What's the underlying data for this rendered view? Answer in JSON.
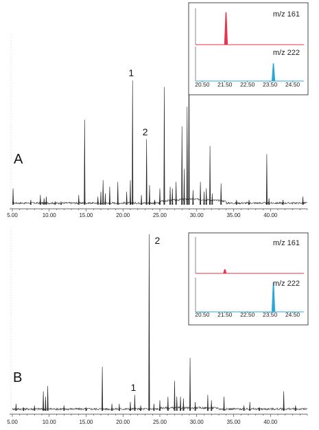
{
  "chart_data": [
    {
      "type": "line",
      "panel_label": "A",
      "xlim": [
        5.0,
        45.0
      ],
      "x_ticks": [
        "5.00",
        "10.00",
        "15.00",
        "20.00",
        "25.00",
        "30.00",
        "35.00",
        "40.00"
      ],
      "x_tick_values": [
        5,
        10,
        15,
        20,
        25,
        30,
        35,
        40
      ],
      "peaks": [
        {
          "x": 5.1,
          "h": 0.1
        },
        {
          "x": 7.5,
          "h": 0.03
        },
        {
          "x": 8.8,
          "h": 0.06
        },
        {
          "x": 9.3,
          "h": 0.04
        },
        {
          "x": 9.6,
          "h": 0.05
        },
        {
          "x": 10.8,
          "h": 0.02
        },
        {
          "x": 11.6,
          "h": 0.02
        },
        {
          "x": 14.0,
          "h": 0.06
        },
        {
          "x": 14.8,
          "h": 0.52
        },
        {
          "x": 16.6,
          "h": 0.05
        },
        {
          "x": 17.0,
          "h": 0.08
        },
        {
          "x": 17.3,
          "h": 0.15
        },
        {
          "x": 17.6,
          "h": 0.07
        },
        {
          "x": 18.2,
          "h": 0.11
        },
        {
          "x": 19.3,
          "h": 0.14
        },
        {
          "x": 20.5,
          "h": 0.08
        },
        {
          "x": 21.0,
          "h": 0.15
        },
        {
          "x": 21.3,
          "h": 0.76
        },
        {
          "x": 22.5,
          "h": 0.06
        },
        {
          "x": 23.2,
          "h": 0.4
        },
        {
          "x": 23.6,
          "h": 0.12
        },
        {
          "x": 24.3,
          "h": 0.03
        },
        {
          "x": 25.0,
          "h": 0.1
        },
        {
          "x": 25.6,
          "h": 0.72
        },
        {
          "x": 26.4,
          "h": 0.11
        },
        {
          "x": 26.7,
          "h": 0.1
        },
        {
          "x": 27.2,
          "h": 0.14
        },
        {
          "x": 28.0,
          "h": 0.48
        },
        {
          "x": 28.3,
          "h": 0.22
        },
        {
          "x": 28.7,
          "h": 0.6
        },
        {
          "x": 28.95,
          "h": 1.0
        },
        {
          "x": 29.5,
          "h": 0.09
        },
        {
          "x": 30.5,
          "h": 0.14
        },
        {
          "x": 31.0,
          "h": 0.08
        },
        {
          "x": 31.3,
          "h": 0.1
        },
        {
          "x": 31.8,
          "h": 0.36
        },
        {
          "x": 32.1,
          "h": 0.07
        },
        {
          "x": 33.3,
          "h": 0.13
        },
        {
          "x": 35.4,
          "h": 0.03
        },
        {
          "x": 37.1,
          "h": 0.03
        },
        {
          "x": 39.5,
          "h": 0.31
        },
        {
          "x": 39.8,
          "h": 0.04
        },
        {
          "x": 41.7,
          "h": 0.03
        },
        {
          "x": 44.4,
          "h": 0.05
        }
      ],
      "peak_labels": [
        {
          "text": "1",
          "x": 21.3
        },
        {
          "text": "2",
          "x": 23.2
        }
      ],
      "inset": {
        "xlim": [
          20.2,
          25.0
        ],
        "x_ticks": [
          "20.50",
          "21.50",
          "22.50",
          "23.50",
          "24.50"
        ],
        "x_tick_values": [
          20.5,
          21.5,
          22.5,
          23.5,
          24.5
        ],
        "traces": [
          {
            "ion": "m/z 161",
            "color": "#e8334a",
            "peak_x": 21.55,
            "peak_h": 0.95
          },
          {
            "ion": "m/z 222",
            "color": "#29a8d8",
            "peak_x": 23.65,
            "peak_h": 0.55
          }
        ]
      }
    },
    {
      "type": "line",
      "panel_label": "B",
      "xlim": [
        5.0,
        45.0
      ],
      "x_ticks": [
        "5.00",
        "10.00",
        "15.00",
        "20.00",
        "25.00",
        "30.00",
        "35.00",
        "40.00"
      ],
      "x_tick_values": [
        5,
        10,
        15,
        20,
        25,
        30,
        35,
        40
      ],
      "peaks": [
        {
          "x": 5.5,
          "h": 0.04
        },
        {
          "x": 6.5,
          "h": 0.02
        },
        {
          "x": 8.0,
          "h": 0.03
        },
        {
          "x": 9.2,
          "h": 0.11
        },
        {
          "x": 9.5,
          "h": 0.08
        },
        {
          "x": 9.8,
          "h": 0.14
        },
        {
          "x": 12.0,
          "h": 0.03
        },
        {
          "x": 15.0,
          "h": 0.02
        },
        {
          "x": 17.2,
          "h": 0.25
        },
        {
          "x": 18.5,
          "h": 0.04
        },
        {
          "x": 19.5,
          "h": 0.04
        },
        {
          "x": 21.0,
          "h": 0.05
        },
        {
          "x": 21.6,
          "h": 0.09
        },
        {
          "x": 22.4,
          "h": 0.03
        },
        {
          "x": 23.55,
          "h": 1.0
        },
        {
          "x": 24.2,
          "h": 0.04
        },
        {
          "x": 25.0,
          "h": 0.06
        },
        {
          "x": 26.1,
          "h": 0.08
        },
        {
          "x": 27.0,
          "h": 0.17
        },
        {
          "x": 27.3,
          "h": 0.08
        },
        {
          "x": 27.8,
          "h": 0.08
        },
        {
          "x": 28.2,
          "h": 0.07
        },
        {
          "x": 29.1,
          "h": 0.3
        },
        {
          "x": 29.8,
          "h": 0.05
        },
        {
          "x": 31.5,
          "h": 0.09
        },
        {
          "x": 32.0,
          "h": 0.06
        },
        {
          "x": 33.7,
          "h": 0.08
        },
        {
          "x": 36.4,
          "h": 0.03
        },
        {
          "x": 37.2,
          "h": 0.05
        },
        {
          "x": 38.5,
          "h": 0.02
        },
        {
          "x": 41.8,
          "h": 0.11
        },
        {
          "x": 43.4,
          "h": 0.03
        }
      ],
      "peak_labels": [
        {
          "text": "1",
          "x": 21.6
        },
        {
          "text": "2",
          "x": 23.55
        }
      ],
      "inset": {
        "xlim": [
          20.2,
          25.0
        ],
        "x_ticks": [
          "20.50",
          "21.50",
          "22.50",
          "23.50",
          "24.50"
        ],
        "x_tick_values": [
          20.5,
          21.5,
          22.5,
          23.5,
          24.5
        ],
        "traces": [
          {
            "ion": "m/z 161",
            "color": "#e8334a",
            "peak_x": 21.5,
            "peak_h": 0.12
          },
          {
            "ion": "m/z 222",
            "color": "#29a8d8",
            "peak_x": 23.65,
            "peak_h": 0.92
          }
        ]
      }
    }
  ]
}
